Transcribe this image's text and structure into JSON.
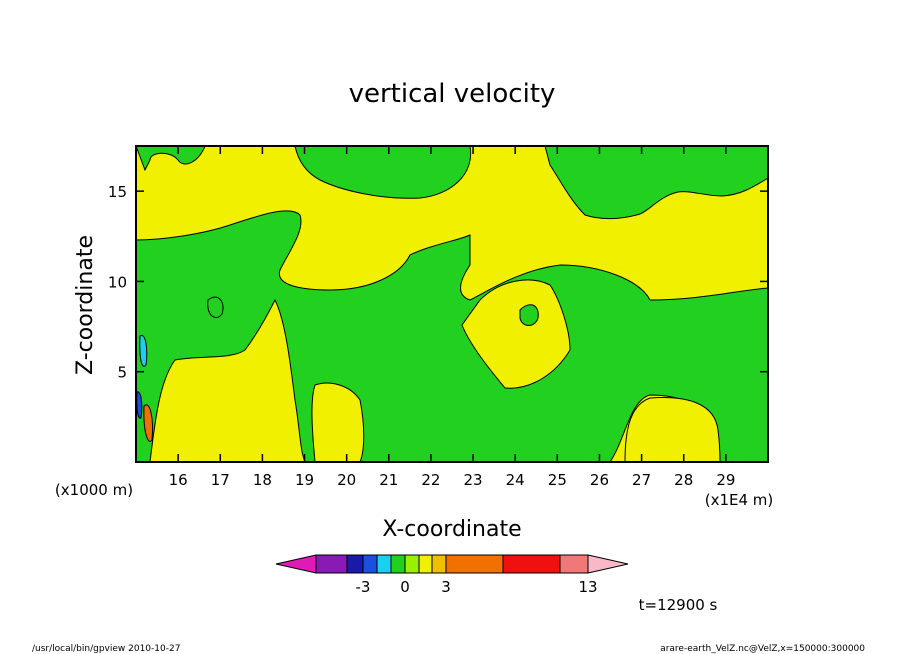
{
  "chart_data": {
    "type": "heatmap",
    "title": "vertical velocity",
    "xlabel": "X-coordinate",
    "ylabel": "Z-coordinate",
    "xunit_left": "(x1000 m)",
    "xunit_right": "(x1E4 m)",
    "xlim": [
      15.0,
      30.0
    ],
    "ylim": [
      0.0,
      17.5
    ],
    "xticks": [
      16,
      17,
      18,
      19,
      20,
      21,
      22,
      23,
      24,
      25,
      26,
      27,
      28,
      29
    ],
    "yticks": [
      5,
      10,
      15
    ],
    "colorbar": {
      "colors": [
        "#e01ab5",
        "#8a1ab5",
        "#1a1aa8",
        "#1a4fe0",
        "#1ad0f0",
        "#22d020",
        "#9af000",
        "#f0f000",
        "#f0c000",
        "#f07000",
        "#f01010",
        "#f07878",
        "#f8b8c8"
      ],
      "tick_labels": [
        "-3",
        "0",
        "3",
        "13"
      ]
    },
    "time_label": "t=12900 s",
    "footer_left": "/usr/local/bin/gpview  2010-10-27",
    "footer_right": "arare-earth_VelZ.nc@VelZ,x=150000:300000",
    "background_color": "#f0f000",
    "positive_color": "#f0f000",
    "negative_color": "#22d020"
  }
}
